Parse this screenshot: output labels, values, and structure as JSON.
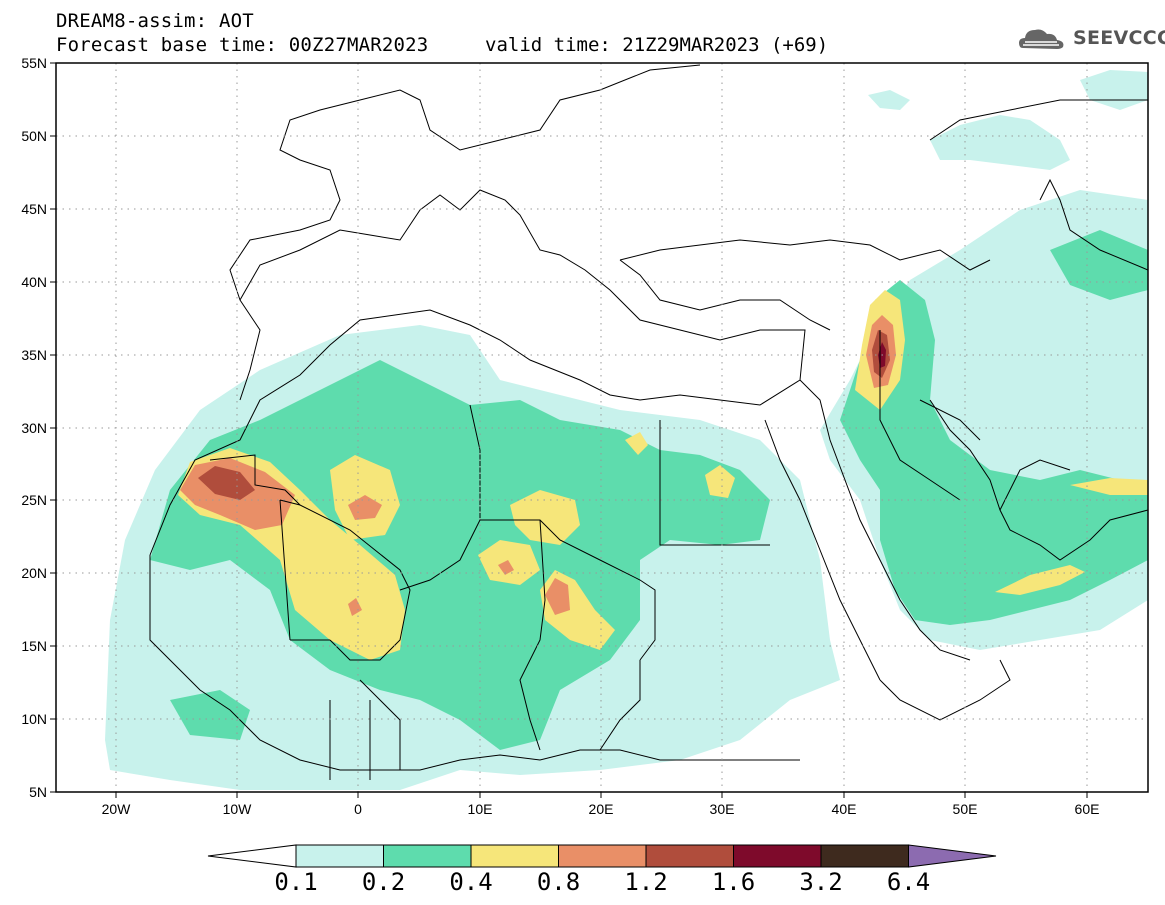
{
  "header": {
    "title_line1": "DREAM8-assim: AOT",
    "title_line2": "Forecast base time: 00Z27MAR2023",
    "valid_time": "valid time: 21Z29MAR2023 (+69)",
    "logo_text": "SEEVCCC"
  },
  "map": {
    "lon_range": [
      -25,
      65
    ],
    "lat_range": [
      5,
      55
    ],
    "lat_ticks": [
      "55N",
      "50N",
      "45N",
      "40N",
      "35N",
      "30N",
      "25N",
      "20N",
      "15N",
      "10N",
      "5N"
    ],
    "lon_ticks": [
      "20W",
      "10W",
      "0",
      "10E",
      "20E",
      "30E",
      "40E",
      "50E",
      "60E"
    ],
    "grid": "dotted",
    "projection": "cylindrical equidistant"
  },
  "colorbar": {
    "labels": [
      "0.1",
      "0.2",
      "0.4",
      "0.8",
      "1.2",
      "1.6",
      "3.2",
      "6.4"
    ],
    "colors": [
      "#c8f2ec",
      "#5edcad",
      "#f6e67a",
      "#e98f67",
      "#b04d3c",
      "#7e0a2b",
      "#3e2a1e",
      "#8c6bb0"
    ],
    "under_color": "#ffffff"
  }
}
